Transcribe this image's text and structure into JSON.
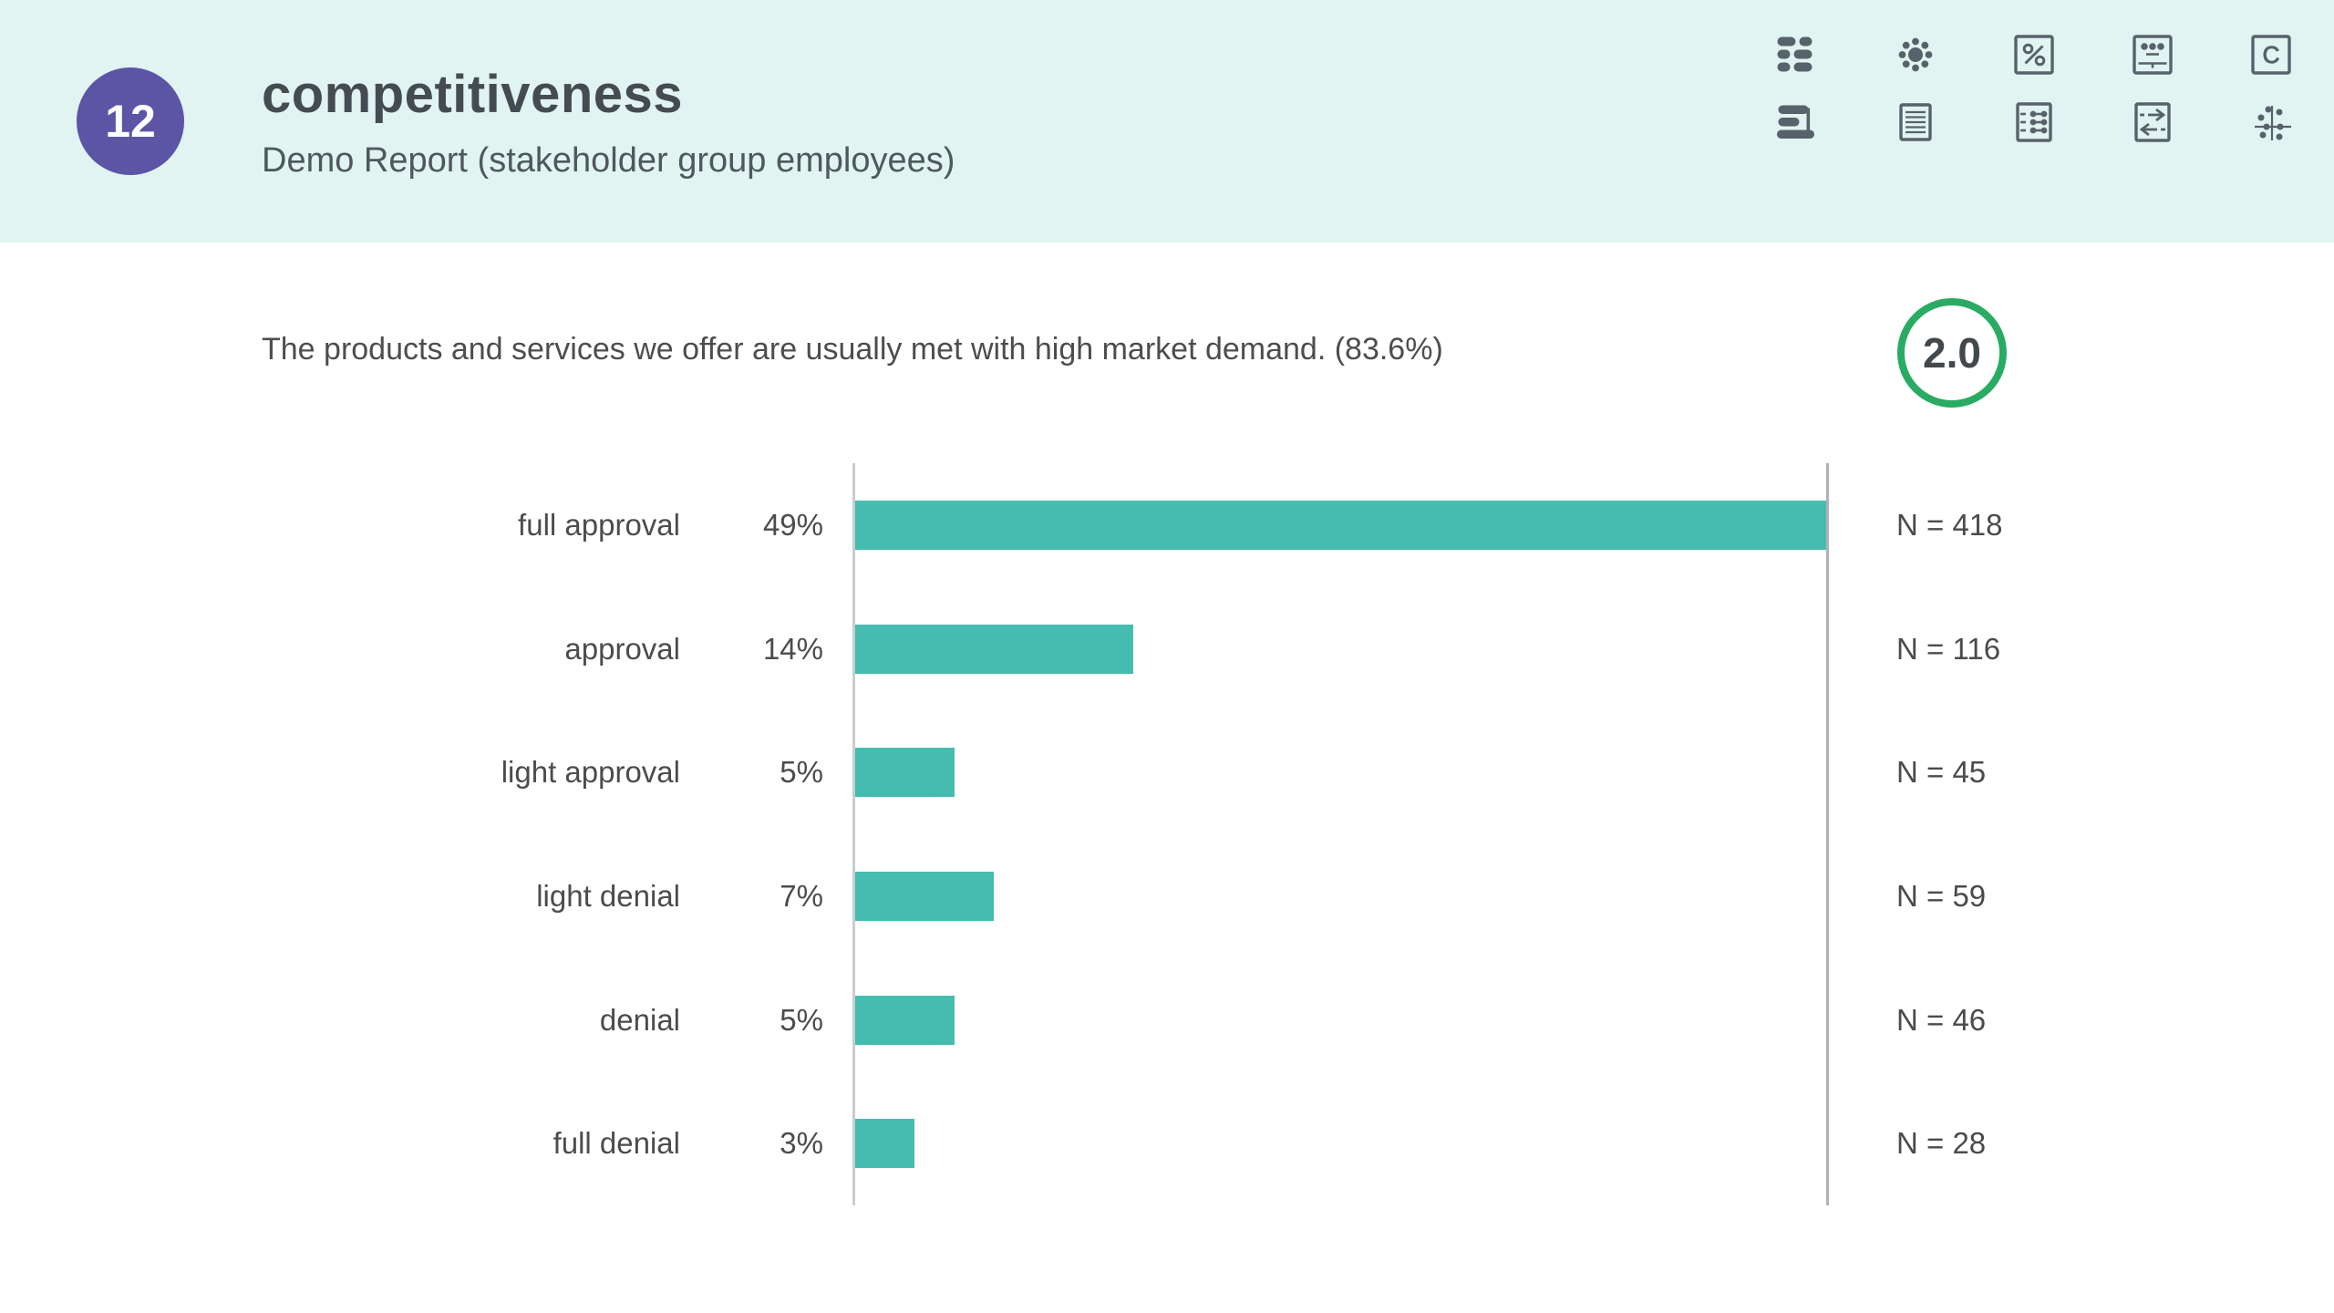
{
  "header": {
    "badge_number": "12",
    "title": "competitiveness",
    "subtitle": "Demo Report (stakeholder group employees)",
    "background_color": "#e2f4f1",
    "badge_color": "#5c55a5",
    "toolbar": {
      "c_glyph": "C",
      "percent_glyph": "%",
      "icons": [
        {
          "name": "word-list-icon"
        },
        {
          "name": "dot-cluster-icon"
        },
        {
          "name": "percent-icon"
        },
        {
          "name": "board-dots-icon"
        },
        {
          "name": "letter-c-icon"
        },
        {
          "name": "horizontal-bar-chart-icon"
        },
        {
          "name": "document-icon"
        },
        {
          "name": "matrix-icon"
        },
        {
          "name": "compare-arrows-icon"
        },
        {
          "name": "scatter-plot-icon"
        }
      ]
    }
  },
  "question": {
    "text": "The products and services we offer are usually met with high market demand. (83.6%)",
    "score": "2.0",
    "score_ring_color": "#2aab63"
  },
  "chart_data": {
    "type": "bar",
    "orientation": "horizontal",
    "title": "The products and services we offer are usually met with high market demand. (83.6%)",
    "bar_color": "#46bcb0",
    "categories": [
      "full approval",
      "approval",
      "light approval",
      "light denial",
      "denial",
      "full denial"
    ],
    "values_percent": [
      49,
      14,
      5,
      7,
      5,
      3
    ],
    "value_labels": [
      "49%",
      "14%",
      "5%",
      "7%",
      "5%",
      "3%"
    ],
    "n_values": [
      418,
      116,
      45,
      59,
      46,
      28
    ],
    "n_labels": [
      "N = 418",
      "N = 116",
      "N = 45",
      "N = 59",
      "N = 46",
      "N = 28"
    ],
    "xlim": [
      0,
      49
    ],
    "grid": "left and right boundary lines only",
    "legend": "none"
  }
}
